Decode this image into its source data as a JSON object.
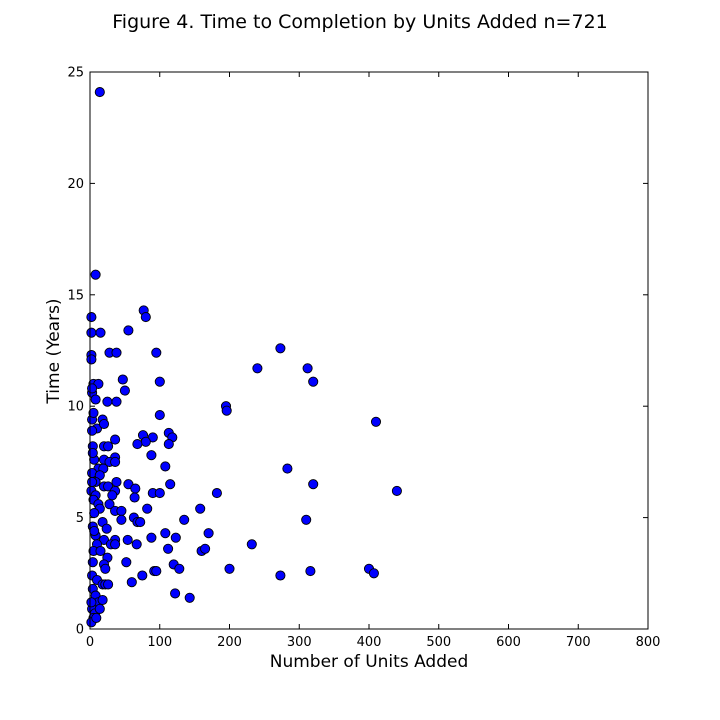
{
  "chart_data": {
    "type": "scatter",
    "title": "Figure 4. Time to Completion by Units Added n=721",
    "xlabel": "Number of Units Added",
    "ylabel": "Time (Years)",
    "xlim": [
      0,
      800
    ],
    "ylim": [
      0,
      25
    ],
    "xticks": [
      "0",
      "100",
      "200",
      "300",
      "400",
      "500",
      "600",
      "700",
      "800"
    ],
    "yticks": [
      "0",
      "5",
      "10",
      "15",
      "20",
      "25"
    ],
    "grid": false,
    "marker_color": "#0000ff",
    "marker_edge_color": "#000000",
    "points": [
      [
        14,
        24.1
      ],
      [
        8,
        15.9
      ],
      [
        2,
        14.0
      ],
      [
        77,
        14.3
      ],
      [
        80,
        14.0
      ],
      [
        55,
        13.4
      ],
      [
        2,
        13.3
      ],
      [
        15,
        13.3
      ],
      [
        2,
        12.3
      ],
      [
        2,
        12.1
      ],
      [
        28,
        12.4
      ],
      [
        38,
        12.4
      ],
      [
        95,
        12.4
      ],
      [
        273,
        12.6
      ],
      [
        240,
        11.7
      ],
      [
        312,
        11.7
      ],
      [
        320,
        11.1
      ],
      [
        47,
        11.2
      ],
      [
        100,
        11.1
      ],
      [
        5,
        11.0
      ],
      [
        12,
        11.0
      ],
      [
        3,
        10.6
      ],
      [
        50,
        10.7
      ],
      [
        8,
        10.3
      ],
      [
        25,
        10.2
      ],
      [
        38,
        10.2
      ],
      [
        195,
        10.0
      ],
      [
        196,
        9.8
      ],
      [
        100,
        9.6
      ],
      [
        410,
        9.3
      ],
      [
        3,
        9.4
      ],
      [
        18,
        9.4
      ],
      [
        10,
        9.0
      ],
      [
        20,
        9.2
      ],
      [
        3,
        8.9
      ],
      [
        90,
        8.6
      ],
      [
        113,
        8.8
      ],
      [
        118,
        8.6
      ],
      [
        76,
        8.7
      ],
      [
        80,
        8.4
      ],
      [
        36,
        8.5
      ],
      [
        20,
        8.2
      ],
      [
        26,
        8.2
      ],
      [
        68,
        8.3
      ],
      [
        113,
        8.3
      ],
      [
        4,
        8.2
      ],
      [
        88,
        7.8
      ],
      [
        6,
        7.6
      ],
      [
        20,
        7.6
      ],
      [
        36,
        7.7
      ],
      [
        28,
        7.5
      ],
      [
        36,
        7.5
      ],
      [
        12,
        7.2
      ],
      [
        19,
        7.2
      ],
      [
        108,
        7.3
      ],
      [
        283,
        7.2
      ],
      [
        3,
        7.0
      ],
      [
        14,
        6.9
      ],
      [
        8,
        6.6
      ],
      [
        38,
        6.6
      ],
      [
        20,
        6.4
      ],
      [
        26,
        6.4
      ],
      [
        55,
        6.5
      ],
      [
        115,
        6.5
      ],
      [
        320,
        6.5
      ],
      [
        440,
        6.2
      ],
      [
        182,
        6.1
      ],
      [
        90,
        6.1
      ],
      [
        100,
        6.1
      ],
      [
        65,
        6.3
      ],
      [
        64,
        5.9
      ],
      [
        36,
        6.2
      ],
      [
        32,
        6.0
      ],
      [
        2,
        6.2
      ],
      [
        8,
        6.0
      ],
      [
        5,
        5.8
      ],
      [
        12,
        5.6
      ],
      [
        28,
        5.6
      ],
      [
        14,
        5.4
      ],
      [
        36,
        5.3
      ],
      [
        45,
        5.3
      ],
      [
        82,
        5.4
      ],
      [
        158,
        5.4
      ],
      [
        310,
        4.9
      ],
      [
        135,
        4.9
      ],
      [
        63,
        5.0
      ],
      [
        45,
        4.9
      ],
      [
        18,
        4.8
      ],
      [
        68,
        4.8
      ],
      [
        72,
        4.8
      ],
      [
        24,
        4.5
      ],
      [
        108,
        4.3
      ],
      [
        123,
        4.1
      ],
      [
        170,
        4.3
      ],
      [
        88,
        4.1
      ],
      [
        54,
        4.0
      ],
      [
        36,
        4.0
      ],
      [
        20,
        4.0
      ],
      [
        8,
        4.2
      ],
      [
        4,
        4.6
      ],
      [
        10,
        3.8
      ],
      [
        30,
        3.8
      ],
      [
        36,
        3.8
      ],
      [
        67,
        3.8
      ],
      [
        112,
        3.6
      ],
      [
        160,
        3.5
      ],
      [
        165,
        3.6
      ],
      [
        232,
        3.8
      ],
      [
        5,
        3.5
      ],
      [
        15,
        3.5
      ],
      [
        25,
        3.2
      ],
      [
        52,
        3.0
      ],
      [
        20,
        2.9
      ],
      [
        22,
        2.7
      ],
      [
        120,
        2.9
      ],
      [
        128,
        2.7
      ],
      [
        92,
        2.6
      ],
      [
        95,
        2.6
      ],
      [
        200,
        2.7
      ],
      [
        316,
        2.6
      ],
      [
        400,
        2.7
      ],
      [
        407,
        2.5
      ],
      [
        273,
        2.4
      ],
      [
        75,
        2.4
      ],
      [
        60,
        2.1
      ],
      [
        3,
        2.4
      ],
      [
        10,
        2.2
      ],
      [
        18,
        2.0
      ],
      [
        22,
        2.0
      ],
      [
        26,
        2.0
      ],
      [
        4,
        1.8
      ],
      [
        8,
        1.5
      ],
      [
        12,
        1.2
      ],
      [
        18,
        1.3
      ],
      [
        122,
        1.6
      ],
      [
        143,
        1.4
      ],
      [
        3,
        0.9
      ],
      [
        7,
        0.7
      ],
      [
        14,
        0.9
      ],
      [
        5,
        0.5
      ],
      [
        2,
        0.3
      ],
      [
        9,
        0.5
      ],
      [
        4,
        3.0
      ],
      [
        6,
        5.2
      ],
      [
        3,
        6.6
      ],
      [
        4,
        7.9
      ],
      [
        5,
        9.7
      ],
      [
        3,
        10.8
      ],
      [
        6,
        4.4
      ],
      [
        2,
        1.2
      ]
    ]
  }
}
